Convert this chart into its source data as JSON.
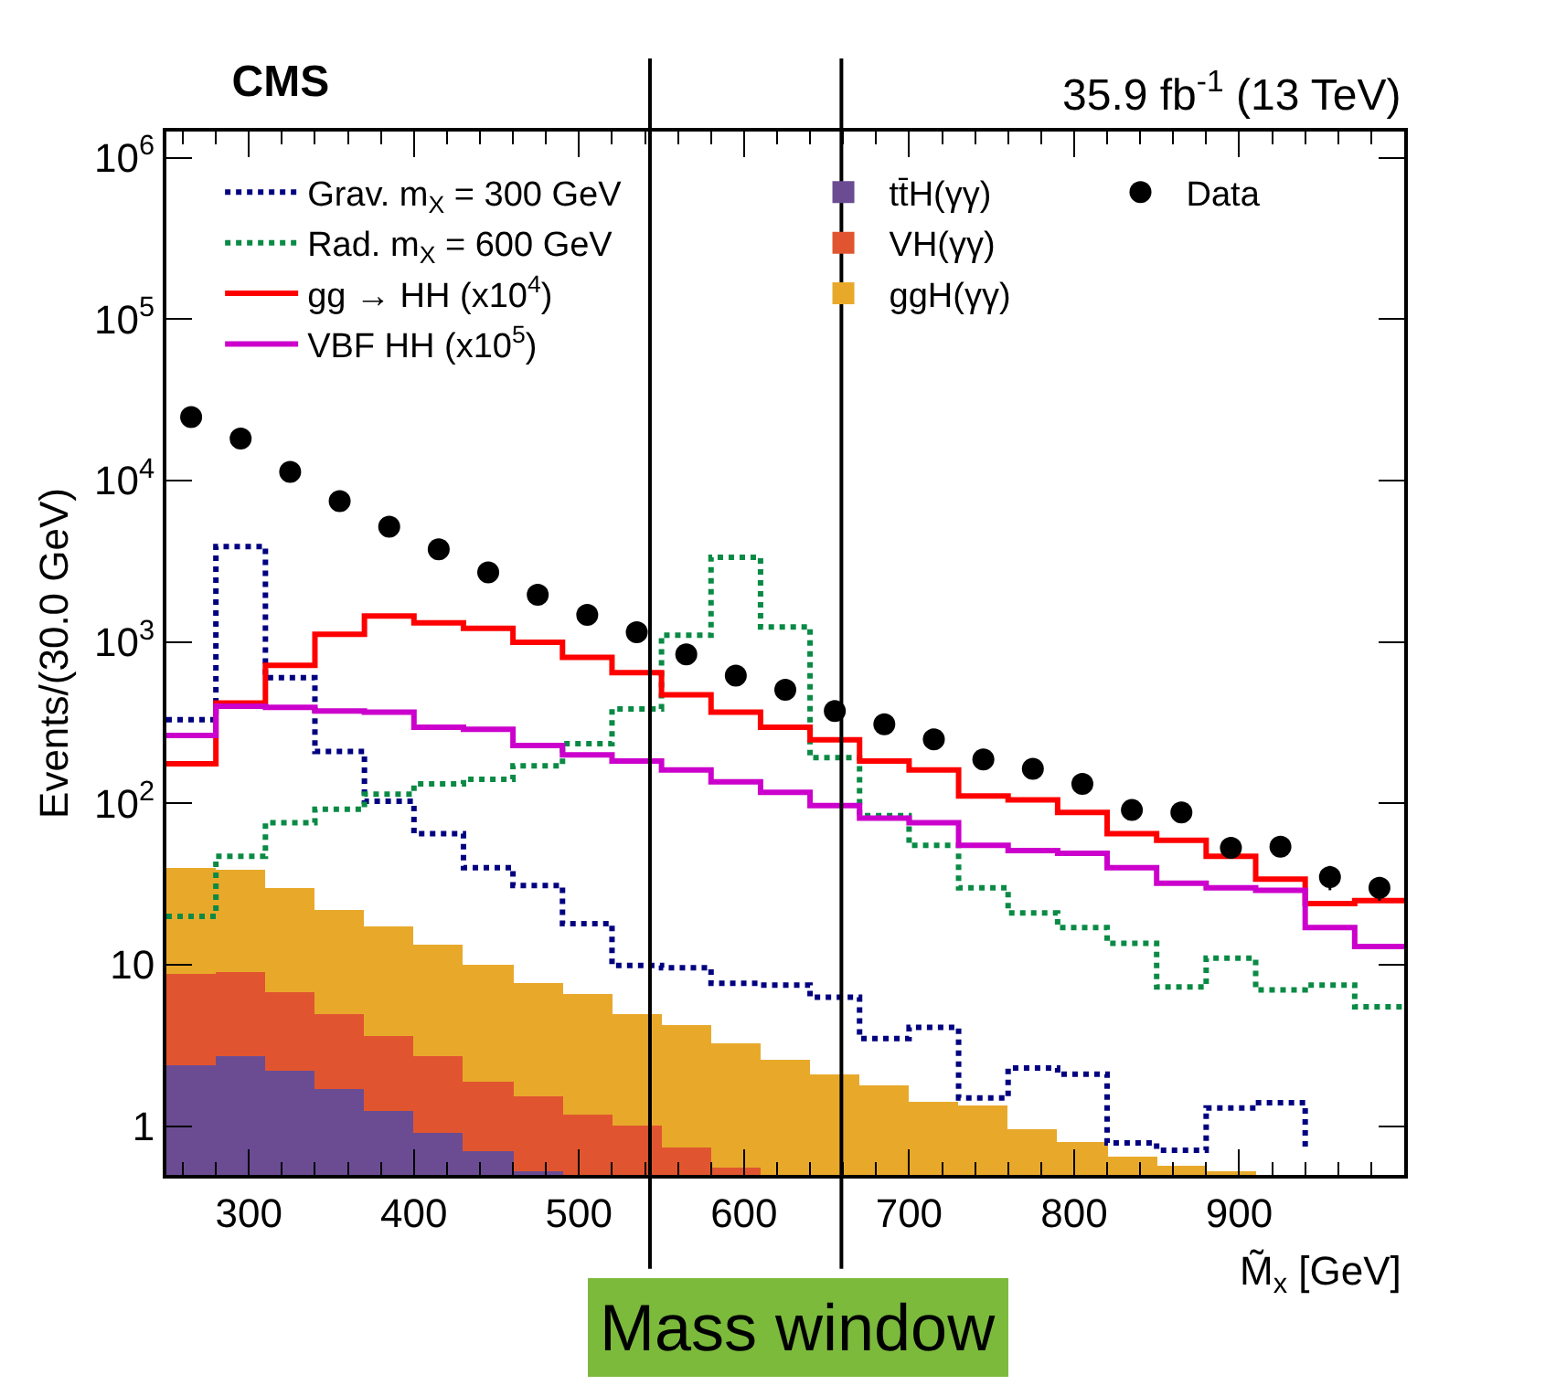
{
  "chart_data": {
    "type": "step",
    "title": "CMS",
    "subtitle": "35.9 fb$^{-1}$ (13 TeV)",
    "xlabel": "M̃$_{x}$ [GeV]",
    "ylabel": "Events/(30.0 GeV)",
    "x": [
      250,
      280,
      310,
      340,
      370,
      400,
      430,
      460,
      490,
      520,
      550,
      580,
      610,
      640,
      670,
      700,
      730,
      760,
      790,
      820,
      850,
      880,
      910,
      940,
      970,
      1000
    ],
    "stacked": true,
    "log": true,
    "grid": false,
    "legend": "top",
    "xlim": [
      250,
      1000
    ],
    "xticks": [
      300,
      400,
      500,
      600,
      700,
      800,
      900
    ],
    "ylim": [
      0.5,
      1450000
    ],
    "yticks": [
      1,
      10,
      {
        "value": 100,
        "label": "10$^{2}$"
      },
      {
        "value": 1000,
        "label": "10$^{3}$"
      },
      {
        "value": 10000,
        "label": "10$^{4}$"
      },
      {
        "value": 100000,
        "label": "10$^{5}$"
      },
      {
        "value": 1000000,
        "label": "10$^{6}$"
      }
    ],
    "series": [
      {
        "name": "tt̄H(γγ)",
        "type": "bar",
        "color": "#6b4c93",
        "x": [
          265,
          295,
          325,
          355,
          385,
          415,
          445,
          475
        ],
        "values": [
          2.4,
          2.7,
          2.2,
          1.7,
          1.25,
          0.92,
          0.71,
          0.53
        ]
      },
      {
        "name": "VH(γγ)",
        "type": "bar",
        "color": "#e05530",
        "x": [
          265,
          295,
          325,
          355,
          385,
          415,
          445,
          475,
          505,
          535,
          565,
          595
        ],
        "values": [
          6.3,
          6.3,
          4.6,
          3.2,
          2.35,
          1.8,
          1.2,
          1.0,
          1.17,
          1.0,
          0.74,
          0.55
        ]
      },
      {
        "name": "ggH(γγ)",
        "type": "bar",
        "color": "#e8a92b",
        "x": [
          265,
          295,
          325,
          355,
          385,
          415,
          445,
          475,
          505,
          535,
          565,
          595,
          625,
          655,
          685,
          715,
          745,
          775,
          805,
          835,
          865,
          895
        ],
        "values": [
          31,
          30,
          23,
          17,
          13.8,
          10.7,
          8.0,
          6.1,
          5.4,
          3.9,
          3.5,
          2.75,
          2.6,
          2.1,
          1.8,
          1.4,
          1.33,
          0.97,
          0.8,
          0.65,
          0.57,
          0.53
        ]
      },
      {
        "name": "Grav. m$_{X}$ = 300 GeV",
        "line_style": "dotted",
        "color": "#000080",
        "values": [
          330,
          3900,
          600,
          210,
          103,
          65,
          40,
          31,
          18,
          9.9,
          9.6,
          7.7,
          7.5,
          6.3,
          3.5,
          4.1,
          1.5,
          2.3,
          2.1,
          0.79,
          0.71,
          1.3,
          1.4,
          0.74,
          null,
          null
        ]
      },
      {
        "name": "Rad. m$_{X}$ = 600 GeV",
        "line_style": "dotted",
        "color": "#0a8a45",
        "values": [
          20,
          47,
          76,
          92,
          114,
          132,
          141,
          171,
          234,
          384,
          1100,
          3350,
          1240,
          192,
          84,
          55,
          30,
          21,
          17,
          13.6,
          7.3,
          11,
          7.0,
          7.5,
          5.5,
          5.5
        ]
      },
      {
        "name": "gg → HH (x10$^{4}$)",
        "line_style": "solid",
        "color": "#ff0000",
        "values": [
          176,
          418,
          717,
          1115,
          1446,
          1315,
          1216,
          995,
          802,
          646,
          470,
          367,
          296,
          248,
          183,
          161,
          111,
          105,
          88,
          65,
          59,
          47,
          34,
          24,
          25,
          25
        ]
      },
      {
        "name": "VBF HH (x10$^{5}$)",
        "line_style": "solid",
        "color": "#cc00cc",
        "values": [
          264,
          400,
          394,
          374,
          367,
          296,
          288,
          228,
          200,
          183,
          161,
          136,
          117,
          97,
          81,
          76,
          55,
          51,
          49,
          40,
          32,
          30,
          29,
          17,
          13,
          13
        ]
      },
      {
        "name": "Data",
        "type": "scatter",
        "marker": "circle",
        "color": "#000000",
        "x": [
          265,
          295,
          325,
          355,
          385,
          415,
          445,
          475,
          505,
          535,
          565,
          595,
          625,
          655,
          685,
          715,
          745,
          775,
          805,
          835,
          865,
          895,
          925,
          955,
          985
        ],
        "values": [
          24700,
          18200,
          11300,
          7450,
          5180,
          3750,
          2700,
          1960,
          1470,
          1150,
          838,
          618,
          506,
          374,
          309,
          249,
          187,
          164,
          132,
          91,
          88,
          53,
          54,
          35,
          30
        ],
        "errors": [
          null,
          null,
          null,
          null,
          null,
          null,
          null,
          null,
          null,
          null,
          null,
          null,
          null,
          null,
          null,
          null,
          null,
          null,
          null,
          null,
          null,
          7,
          7,
          6,
          5
        ]
      }
    ],
    "ref_lines": [
      {
        "axis": "x",
        "value": 543,
        "color": "#000000"
      },
      {
        "axis": "x",
        "value": 659,
        "color": "#000000"
      }
    ],
    "annotations": [
      "Mass window"
    ]
  }
}
